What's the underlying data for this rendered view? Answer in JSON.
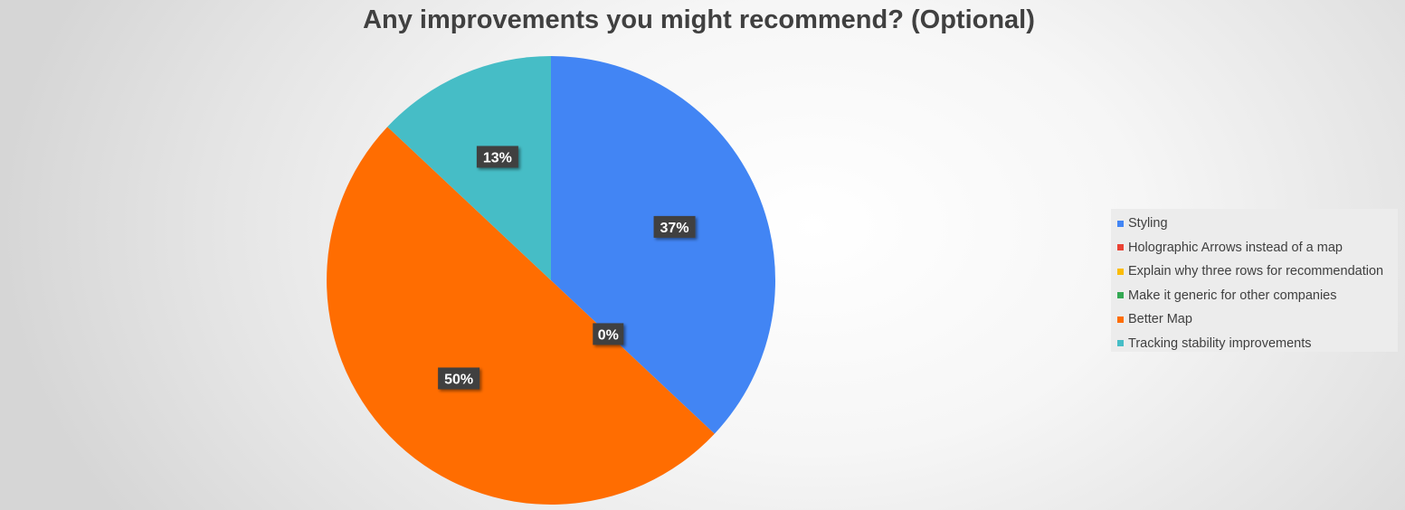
{
  "chart_data": {
    "type": "pie",
    "title": "Any improvements you might recommend? (Optional)",
    "slices": [
      {
        "label": "Styling",
        "value": 37,
        "display": "37%",
        "color": "#4285f4"
      },
      {
        "label": "Holographic Arrows instead of a map",
        "value": 0,
        "display": "",
        "color": "#ea4335"
      },
      {
        "label": "Explain why three rows for recommendation",
        "value": 0,
        "display": "",
        "color": "#fbbc04"
      },
      {
        "label": "Make it generic for other companies",
        "value": 0,
        "display": "0%",
        "color": "#34a853"
      },
      {
        "label": "Better Map",
        "value": 50,
        "display": "50%",
        "color": "#ff6d01"
      },
      {
        "label": "Tracking stability improvements",
        "value": 13,
        "display": "13%",
        "color": "#46bdc6"
      }
    ],
    "legend_position": "right"
  }
}
